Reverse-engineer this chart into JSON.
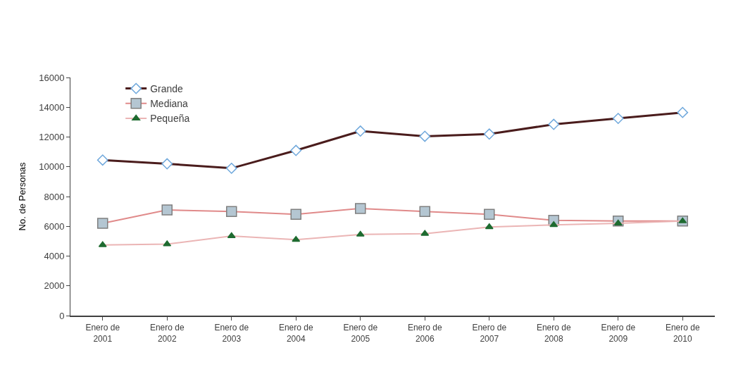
{
  "chart_data": {
    "type": "line",
    "ylabel": "No. de Personas",
    "categories": [
      "Enero de 2001",
      "Enero de 2002",
      "Enero de 2003",
      "Enero de 2004",
      "Enero de 2005",
      "Enero de 2006",
      "Enero de 2007",
      "Enero de 2008",
      "Enero de 2009",
      "Enero de 2010"
    ],
    "series": [
      {
        "name": "Grande",
        "color": "#4a1c1c",
        "marker": "diamond",
        "values": [
          10450,
          10200,
          9900,
          11100,
          12400,
          12050,
          12200,
          12850,
          13250,
          13650
        ]
      },
      {
        "name": "Mediana",
        "color": "#e08a8a",
        "marker": "square",
        "values": [
          6200,
          7100,
          7000,
          6800,
          7200,
          7000,
          6800,
          6400,
          6350,
          6350
        ]
      },
      {
        "name": "Pequeña",
        "color": "#ebb5b5",
        "marker": "triangle",
        "values": [
          4750,
          4800,
          5350,
          5100,
          5450,
          5500,
          5950,
          6100,
          6200,
          6350
        ]
      }
    ],
    "ylim": [
      0,
      16000
    ],
    "yticks": [
      0,
      2000,
      4000,
      6000,
      8000,
      10000,
      12000,
      14000,
      16000
    ],
    "grid": false,
    "legend": "top left"
  }
}
